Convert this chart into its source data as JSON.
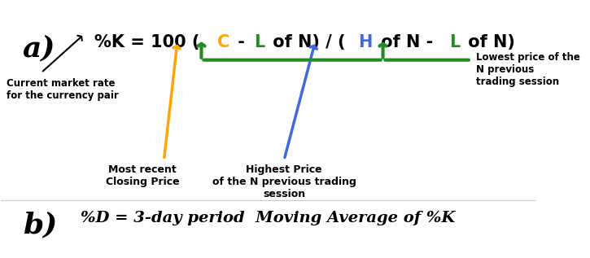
{
  "fig_width": 7.25,
  "fig_height": 3.17,
  "bg_color": "#ffffff",
  "formula_parts": [
    {
      "text": "%K = 100 (",
      "color": "#000000",
      "weight": "bold"
    },
    {
      "text": "C",
      "color": "#FFA500",
      "weight": "bold"
    },
    {
      "text": " - ",
      "color": "#000000",
      "weight": "bold"
    },
    {
      "text": "L",
      "color": "#228B22",
      "weight": "bold"
    },
    {
      "text": " of N) / (",
      "color": "#000000",
      "weight": "bold"
    },
    {
      "text": "H",
      "color": "#4169E1",
      "weight": "bold"
    },
    {
      "text": " of N - ",
      "color": "#000000",
      "weight": "bold"
    },
    {
      "text": "L",
      "color": "#228B22",
      "weight": "bold"
    },
    {
      "text": " of N)",
      "color": "#000000",
      "weight": "bold"
    }
  ],
  "label_a": "a)",
  "label_b": "b)",
  "formula_b": "%D = 3-day period  Moving Average of %K",
  "annotation_black": "Current market rate\nfor the currency pair",
  "annotation_orange": "Most recent\nClosing Price",
  "annotation_blue": "Highest Price\nof the N previous trading\nsession",
  "annotation_green": "Lowest price of the\nN previous\ntrading session",
  "arrow_black_color": "#000000",
  "arrow_orange_color": "#FFA500",
  "arrow_blue_color": "#4169E1",
  "arrow_green_color": "#228B22"
}
